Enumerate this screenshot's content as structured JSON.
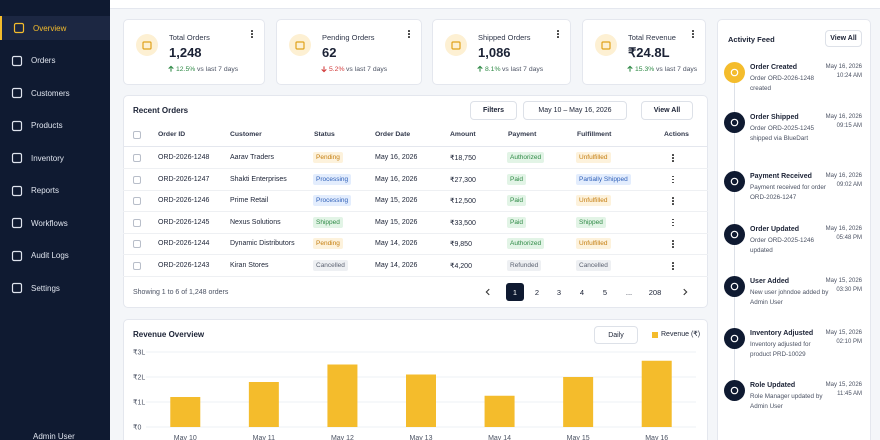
{
  "sidebar": {
    "items": [
      "Overview",
      "Orders",
      "Customers",
      "Products",
      "Inventory",
      "Reports",
      "Workflows",
      "Audit Logs",
      "Settings"
    ],
    "user": "Admin User"
  },
  "stats": [
    {
      "title": "Total Orders",
      "value": "1,248",
      "trend": "up",
      "change": "12.5%",
      "period": "vs last 7 days"
    },
    {
      "title": "Pending Orders",
      "value": "62",
      "trend": "down",
      "change": "5.2%",
      "period": "vs last 7 days"
    },
    {
      "title": "Shipped Orders",
      "value": "1,086",
      "trend": "up",
      "change": "8.1%",
      "period": "vs last 7 days"
    },
    {
      "title": "Total Revenue",
      "value": "₹24.8L",
      "trend": "up",
      "change": "15.3%",
      "period": "vs last 7 days"
    }
  ],
  "orders": {
    "title": "Recent Orders",
    "filters": "Filters",
    "date_range": "May 10 – May 16, 2026",
    "view_all": "View All",
    "columns": [
      "Order ID",
      "Customer",
      "Status",
      "Order Date",
      "Amount",
      "Payment",
      "Fulfillment",
      "Actions"
    ],
    "rows": [
      [
        "ORD-2026-1248",
        "Aarav Traders",
        "Pending",
        "May 16, 2026",
        "₹18,750",
        "Authorized",
        "Unfulfilled"
      ],
      [
        "ORD-2026-1247",
        "Shakti Enterprises",
        "Processing",
        "May 16, 2026",
        "₹27,300",
        "Paid",
        "Partially Shipped"
      ],
      [
        "ORD-2026-1246",
        "Prime Retail",
        "Processing",
        "May 15, 2026",
        "₹12,500",
        "Paid",
        "Unfulfilled"
      ],
      [
        "ORD-2026-1245",
        "Nexus Solutions",
        "Shipped",
        "May 15, 2026",
        "₹33,500",
        "Paid",
        "Shipped"
      ],
      [
        "ORD-2026-1244",
        "Dynamic Distributors",
        "Pending",
        "May 14, 2026",
        "₹9,850",
        "Authorized",
        "Unfulfilled"
      ],
      [
        "ORD-2026-1243",
        "Kiran Stores",
        "Cancelled",
        "May 14, 2026",
        "₹4,200",
        "Refunded",
        "Cancelled"
      ]
    ],
    "summary": "Showing 1 to 6 of 1,248 orders",
    "pages": [
      "1",
      "2",
      "3",
      "4",
      "5",
      "...",
      "208"
    ]
  },
  "activity": {
    "title": "Activity Feed",
    "view_all": "View All",
    "items": [
      {
        "title": "Order Created",
        "description": "Order ORD-2026-1248 created",
        "date": "May 16, 2026",
        "time": "10:24 AM"
      },
      {
        "title": "Order Shipped",
        "description": "Order ORD-2025-1245 shipped via BlueDart",
        "date": "May 16, 2026",
        "time": "09:15 AM"
      },
      {
        "title": "Payment Received",
        "description": "Payment received for order ORD-2026-1247",
        "date": "May 16, 2026",
        "time": "09:02 AM"
      },
      {
        "title": "Order Updated",
        "description": "Order ORD-2025-1246 updated",
        "date": "May 16, 2026",
        "time": "05:48 PM"
      },
      {
        "title": "User Added",
        "description": "New user johndoe added by Admin User",
        "date": "May 15, 2026",
        "time": "03:30 PM"
      },
      {
        "title": "Inventory Adjusted",
        "description": "Inventory adjusted for product PRD-10029",
        "date": "May 15, 2026",
        "time": "02:10 PM"
      },
      {
        "title": "Role Updated",
        "description": "Role Manager updated by Admin User",
        "date": "May 15, 2026",
        "time": "11:45 AM"
      }
    ]
  },
  "chart_data": {
    "type": "bar",
    "title": "Revenue Overview",
    "period": "Daily",
    "categories": [
      "May 10",
      "May 11",
      "May 12",
      "May 13",
      "May 14",
      "May 15",
      "May 16"
    ],
    "series": [
      {
        "name": "Revenue (₹)",
        "color": "#f4bc2c",
        "values": [
          1.2,
          1.8,
          2.5,
          2.1,
          1.25,
          2.0,
          2.65
        ]
      }
    ],
    "ylim": [
      0,
      3
    ],
    "yticks": [
      {
        "value": 0,
        "label": "₹0"
      },
      {
        "value": 1,
        "label": "₹1L"
      },
      {
        "value": 2,
        "label": "₹2L"
      },
      {
        "value": 3,
        "label": "₹3L"
      }
    ],
    "grid": true
  }
}
